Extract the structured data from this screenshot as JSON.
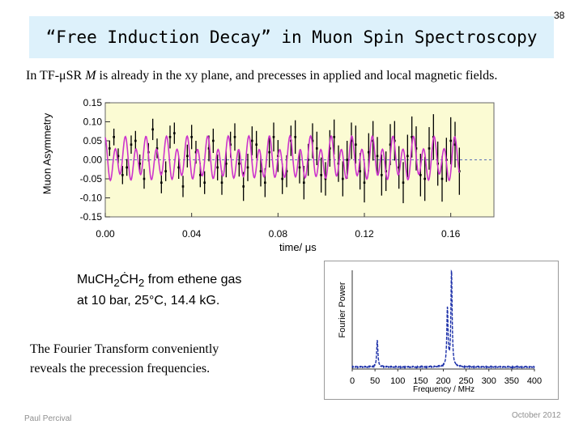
{
  "slide": {
    "number": "38",
    "title": "“Free Induction Decay” in Muon Spin Spectroscopy",
    "subtitle_prefix": "In TF-μSR ",
    "subtitle_symbol": "M",
    "subtitle_suffix": " is already in the xy plane, and precesses in applied and local magnetic fields.",
    "caption_line1_prefix": "MuCH",
    "caption_line1_sub1": "2",
    "caption_line1_mid": "ĊH",
    "caption_line1_sub2": "2",
    "caption_line1_suffix": " from ethene gas",
    "caption_line2": "at 10 bar, 25°C, 14.4 kG.",
    "caption_ft_line1": "The Fourier Transform conveniently",
    "caption_ft_line2": "reveals the precession frequencies.",
    "footer_author": "Paul Percival",
    "footer_date": "October 2012",
    "colors": {
      "title_bg": "#ddf1fb",
      "plot_bg": "#fbfbd3",
      "data": "#000000",
      "fit": "#cc33cc",
      "ft_line": "#1a2ea8",
      "footer": "#8f8f8f"
    }
  },
  "chart_data": [
    {
      "type": "line",
      "title": "",
      "xlabel": "time/ μs",
      "ylabel": "Muon Asymmetry",
      "xlim": [
        0,
        0.18
      ],
      "ylim": [
        -0.15,
        0.15
      ],
      "xticks": [
        0.0,
        0.04,
        0.08,
        0.12,
        0.16
      ],
      "xtick_labels": [
        "0.00",
        "0.04",
        "0.08",
        "0.12",
        "0.16"
      ],
      "yticks": [
        0.15,
        0.1,
        0.05,
        0.0,
        -0.05,
        -0.1,
        -0.15
      ],
      "ytick_labels": [
        "0.15",
        "0.10",
        "0.05",
        "0.00",
        "-0.05",
        "-0.10",
        "-0.15"
      ],
      "zero_line": 0.0,
      "series": [
        {
          "name": "data",
          "style": "points with error bars",
          "color": "#000000",
          "x": [
            0.002,
            0.004,
            0.006,
            0.008,
            0.01,
            0.012,
            0.014,
            0.016,
            0.018,
            0.02,
            0.022,
            0.024,
            0.026,
            0.028,
            0.03,
            0.032,
            0.034,
            0.036,
            0.038,
            0.04,
            0.042,
            0.044,
            0.046,
            0.048,
            0.05,
            0.052,
            0.054,
            0.056,
            0.058,
            0.06,
            0.062,
            0.064,
            0.066,
            0.068,
            0.07,
            0.072,
            0.074,
            0.076,
            0.078,
            0.08,
            0.082,
            0.084,
            0.086,
            0.088,
            0.09,
            0.092,
            0.094,
            0.096,
            0.098,
            0.1,
            0.102,
            0.104,
            0.106,
            0.108,
            0.11,
            0.112,
            0.114,
            0.116,
            0.118,
            0.12,
            0.122,
            0.124,
            0.126,
            0.128,
            0.13,
            0.132,
            0.134,
            0.136,
            0.138,
            0.14,
            0.142,
            0.144,
            0.146,
            0.148,
            0.15,
            0.152,
            0.154,
            0.156,
            0.158,
            0.16,
            0.162,
            0.164
          ],
          "y": [
            0.03,
            0.06,
            0.01,
            -0.04,
            -0.02,
            0.04,
            0.05,
            -0.01,
            -0.05,
            0.02,
            0.08,
            0.03,
            -0.06,
            -0.03,
            0.06,
            0.07,
            -0.02,
            -0.07,
            0.01,
            0.06,
            0.02,
            -0.04,
            -0.06,
            0.03,
            0.05,
            -0.02,
            -0.06,
            -0.01,
            0.04,
            0.06,
            -0.01,
            -0.07,
            -0.02,
            0.05,
            0.04,
            -0.03,
            -0.06,
            0.02,
            0.06,
            0.01,
            -0.05,
            -0.03,
            0.05,
            0.06,
            -0.02,
            -0.06,
            0.0,
            0.05,
            0.03,
            -0.04,
            -0.05,
            0.03,
            0.06,
            -0.01,
            -0.05,
            0.0,
            0.05,
            0.04,
            -0.03,
            -0.06,
            0.02,
            0.05,
            0.01,
            -0.04,
            -0.03,
            0.04,
            0.05,
            -0.02,
            -0.06,
            0.01,
            0.06,
            0.03,
            -0.04,
            -0.05,
            0.03,
            0.06,
            -0.01,
            -0.05,
            0.0,
            0.05,
            0.04,
            -0.03
          ],
          "err": [
            0.02,
            0.022,
            0.02,
            0.024,
            0.022,
            0.024,
            0.026,
            0.024,
            0.026,
            0.024,
            0.028,
            0.026,
            0.028,
            0.026,
            0.03,
            0.028,
            0.03,
            0.028,
            0.03,
            0.032,
            0.03,
            0.032,
            0.03,
            0.034,
            0.032,
            0.034,
            0.032,
            0.036,
            0.034,
            0.036,
            0.034,
            0.038,
            0.036,
            0.038,
            0.036,
            0.04,
            0.038,
            0.04,
            0.038,
            0.042,
            0.04,
            0.042,
            0.04,
            0.044,
            0.042,
            0.044,
            0.042,
            0.046,
            0.044,
            0.046,
            0.044,
            0.048,
            0.046,
            0.048,
            0.046,
            0.05,
            0.048,
            0.05,
            0.048,
            0.052,
            0.05,
            0.052,
            0.05,
            0.054,
            0.052,
            0.054,
            0.052,
            0.056,
            0.054,
            0.056,
            0.054,
            0.058,
            0.056,
            0.058,
            0.056,
            0.06,
            0.058,
            0.06,
            0.058,
            0.062,
            0.06,
            0.062
          ]
        },
        {
          "name": "fit",
          "style": "line",
          "color": "#cc33cc",
          "model": "0.018*cos(2*pi*104*t+0.6) + 0.045*cos(2*pi*210*t+0.2)",
          "x_range": [
            0.0,
            0.164
          ]
        }
      ]
    },
    {
      "type": "line",
      "title": "",
      "xlabel": "Frequency / MHz",
      "ylabel": "Fourier Power",
      "xlim": [
        0,
        400
      ],
      "xticks": [
        0,
        50,
        100,
        150,
        200,
        250,
        300,
        350,
        400
      ],
      "xtick_labels": [
        "0",
        "50",
        "100",
        "150",
        "200",
        "250",
        "300",
        "350",
        "400"
      ],
      "series": [
        {
          "name": "Fourier power",
          "color": "#1a2ea8",
          "peaks": [
            {
              "frequency": 55,
              "relative_power": 0.28
            },
            {
              "frequency": 209,
              "relative_power": 0.6
            },
            {
              "frequency": 218,
              "relative_power": 1.0
            }
          ]
        }
      ]
    }
  ]
}
